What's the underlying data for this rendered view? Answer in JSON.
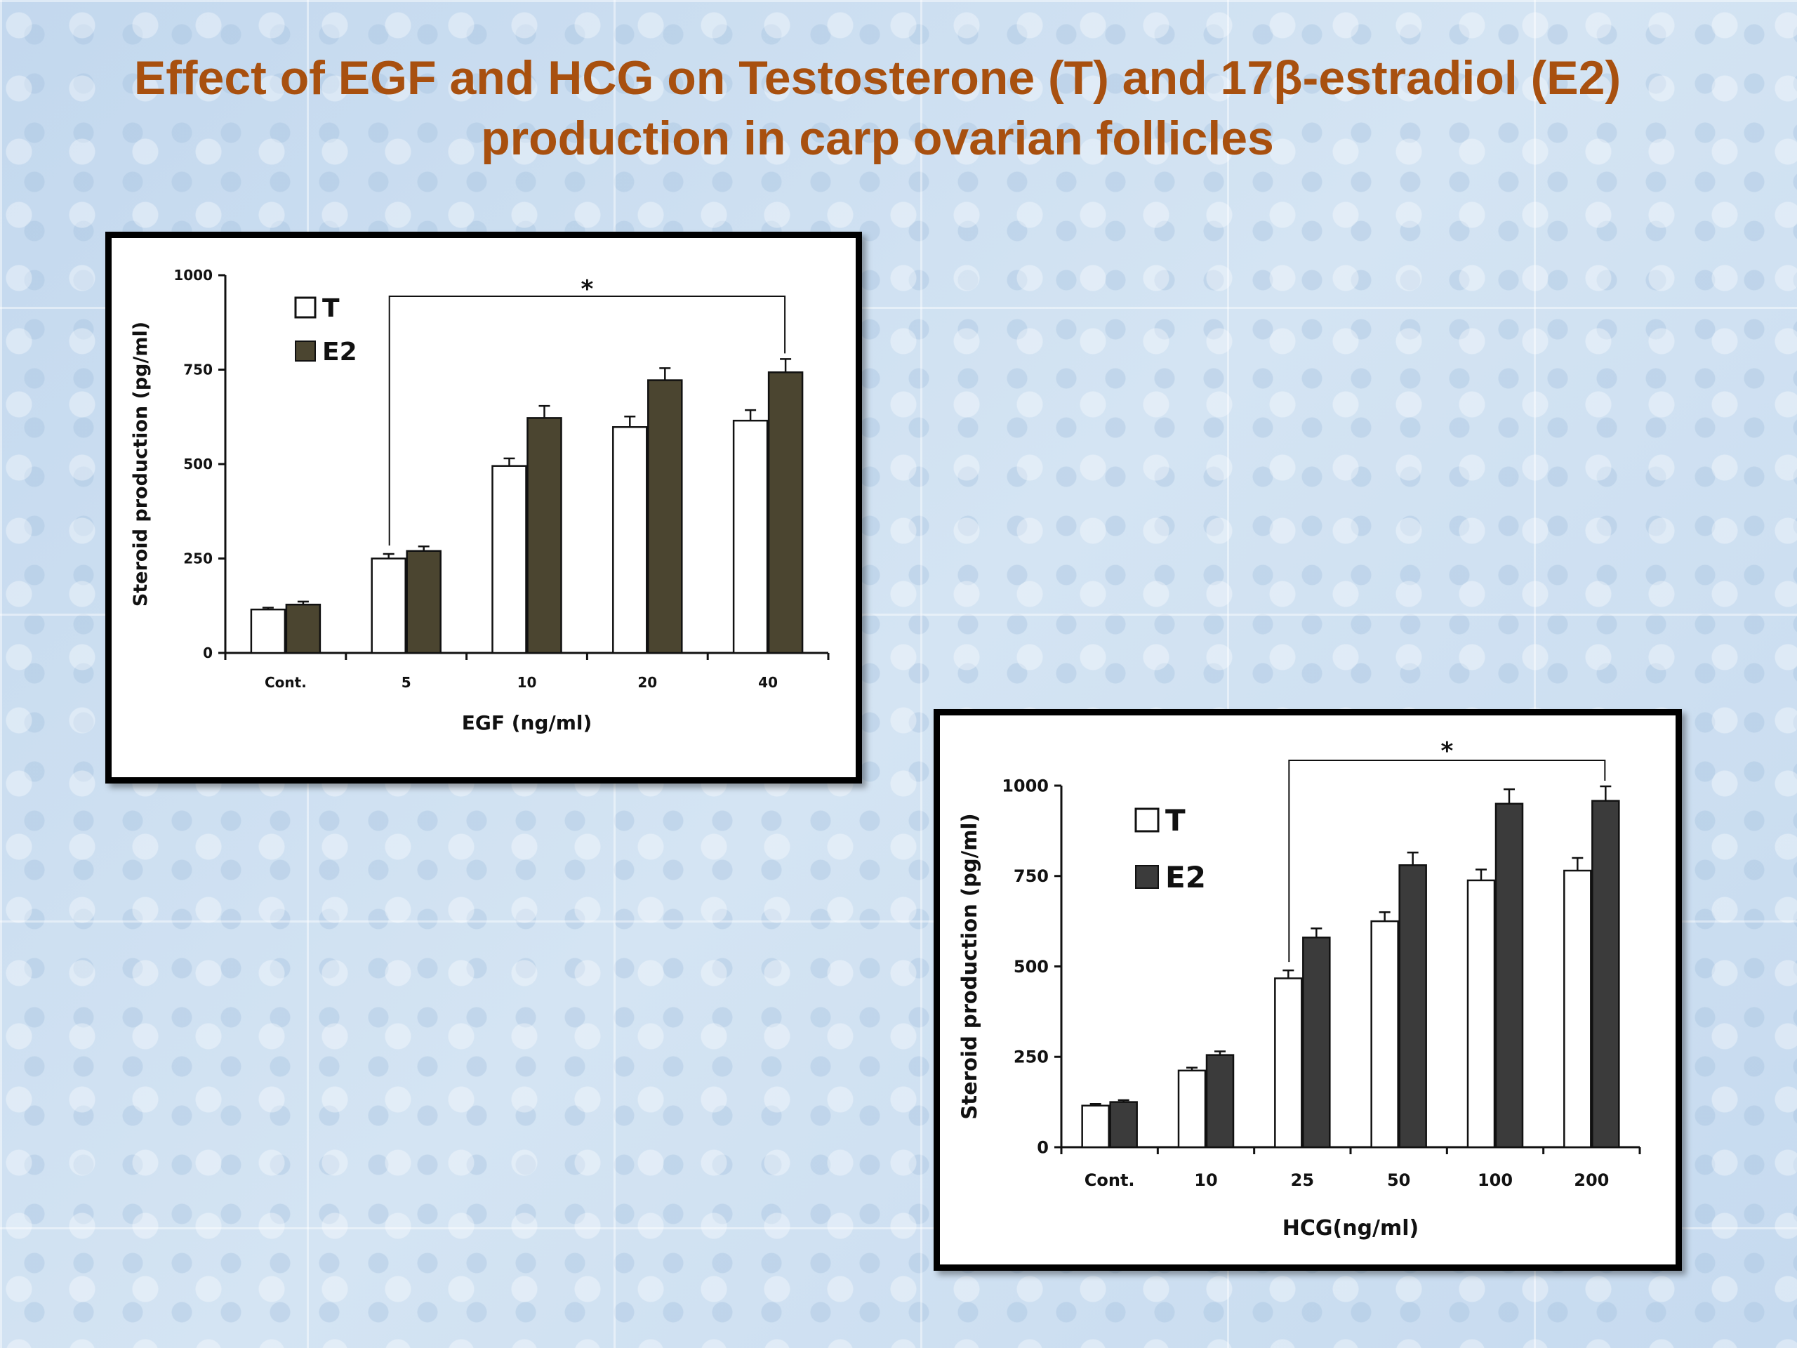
{
  "slide": {
    "title_line1": "Effect of EGF and HCG on Testosterone (T) and 17β-estradiol (E2)",
    "title_line2": "production in carp ovarian follicles"
  },
  "colors": {
    "title": "#a8500f",
    "egf_e2": "#4b4530",
    "hcg_e2": "#3b3b3b",
    "t": "#ffffff"
  },
  "chart_data": [
    {
      "type": "bar",
      "id": "egf",
      "title": "",
      "xlabel": "EGF (ng/ml)",
      "ylabel": "Steroid production (pg/ml)",
      "ylim": [
        0,
        1000
      ],
      "yticks": [
        "0",
        "250",
        "500",
        "750",
        "1000"
      ],
      "categories": [
        "Cont.",
        "5",
        "10",
        "20",
        "40"
      ],
      "series": [
        {
          "name": "T",
          "values": [
            115,
            250,
            495,
            598,
            615
          ],
          "errors": [
            5,
            12,
            20,
            28,
            28
          ]
        },
        {
          "name": "E2",
          "values": [
            128,
            270,
            622,
            722,
            743
          ],
          "errors": [
            8,
            12,
            32,
            32,
            35
          ]
        }
      ],
      "legend": [
        "T",
        "E2"
      ],
      "legend_position": "top-left",
      "significance": {
        "label": "*",
        "from": "5",
        "to": "40"
      }
    },
    {
      "type": "bar",
      "id": "hcg",
      "title": "",
      "xlabel": "HCG(ng/ml)",
      "ylabel": "Steroid production (pg/ml)",
      "ylim": [
        0,
        1000
      ],
      "yticks": [
        "0",
        "250",
        "500",
        "750",
        "1000"
      ],
      "categories": [
        "Cont.",
        "10",
        "25",
        "50",
        "100",
        "200"
      ],
      "series": [
        {
          "name": "T",
          "values": [
            115,
            212,
            467,
            625,
            738,
            765
          ],
          "errors": [
            5,
            8,
            22,
            25,
            30,
            35
          ]
        },
        {
          "name": "E2",
          "values": [
            125,
            255,
            580,
            780,
            950,
            958
          ],
          "errors": [
            5,
            10,
            25,
            35,
            40,
            40
          ]
        }
      ],
      "legend": [
        "T",
        "E2"
      ],
      "legend_position": "top-left",
      "significance": {
        "label": "*",
        "from": "25",
        "to": "200"
      }
    }
  ]
}
